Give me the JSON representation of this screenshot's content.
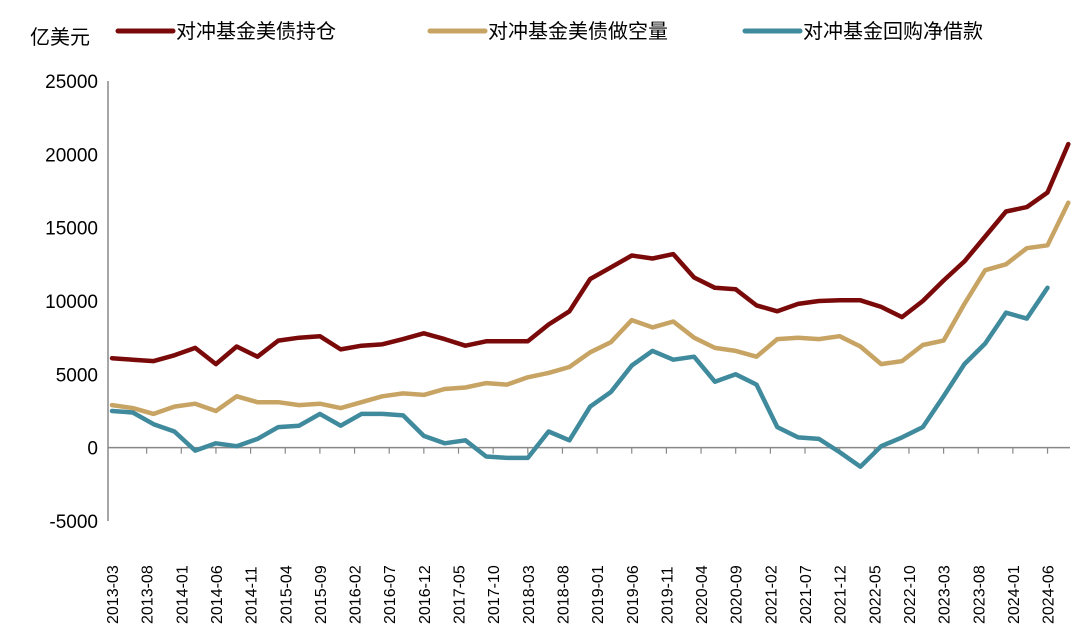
{
  "chart_data": {
    "type": "line",
    "title": "",
    "ylabel": "亿美元",
    "xlabel": "",
    "ylim": [
      -5000,
      25000
    ],
    "yticks": [
      "25000",
      "20000",
      "15000",
      "10000",
      "5000",
      "0",
      "-5000"
    ],
    "ytick_values": [
      25000,
      20000,
      15000,
      10000,
      5000,
      0,
      -5000
    ],
    "xtick_labels": [
      "2013-03",
      "2013-08",
      "2014-01",
      "2014-06",
      "2014-11",
      "2015-04",
      "2015-09",
      "2016-02",
      "2016-07",
      "2016-12",
      "2017-05",
      "2017-10",
      "2018-03",
      "2018-08",
      "2019-01",
      "2019-06",
      "2019-11",
      "2020-04",
      "2020-09",
      "2021-02",
      "2021-07",
      "2021-12",
      "2022-05",
      "2022-10",
      "2023-03",
      "2023-08",
      "2024-01",
      "2024-06"
    ],
    "x": [
      "2013-03",
      "2013-06",
      "2013-09",
      "2013-12",
      "2014-03",
      "2014-06",
      "2014-09",
      "2014-12",
      "2015-03",
      "2015-06",
      "2015-09",
      "2015-12",
      "2016-03",
      "2016-06",
      "2016-09",
      "2016-12",
      "2017-03",
      "2017-06",
      "2017-09",
      "2017-12",
      "2018-03",
      "2018-06",
      "2018-09",
      "2018-12",
      "2019-03",
      "2019-06",
      "2019-09",
      "2019-12",
      "2020-03",
      "2020-06",
      "2020-09",
      "2020-12",
      "2021-03",
      "2021-06",
      "2021-09",
      "2021-12",
      "2022-03",
      "2022-06",
      "2022-09",
      "2022-12",
      "2023-03",
      "2023-06",
      "2023-09",
      "2023-12",
      "2024-03",
      "2024-06",
      "2024-09"
    ],
    "legend_position": "top",
    "grid": false,
    "series": [
      {
        "name": "对冲基金美债持仓",
        "color": "#7a0a0a",
        "values": [
          6100,
          6000,
          5900,
          6300,
          6800,
          5700,
          6900,
          6200,
          7300,
          7500,
          7600,
          6700,
          6950,
          7050,
          7400,
          7800,
          7400,
          6950,
          7250,
          7250,
          7250,
          8400,
          9300,
          11500,
          12300,
          13100,
          12900,
          13200,
          11600,
          10900,
          10800,
          9700,
          9300,
          9800,
          10000,
          10050,
          10050,
          9600,
          8900,
          10000,
          11400,
          12700,
          14400,
          16100,
          16400,
          17400,
          20700
        ]
      },
      {
        "name": "对冲基金美债做空量",
        "color": "#c8a464",
        "values": [
          2900,
          2700,
          2300,
          2800,
          3000,
          2500,
          3500,
          3100,
          3100,
          2900,
          3000,
          2700,
          3100,
          3500,
          3700,
          3600,
          4000,
          4100,
          4400,
          4300,
          4800,
          5100,
          5500,
          6500,
          7200,
          8700,
          8200,
          8600,
          7500,
          6800,
          6600,
          6200,
          7400,
          7500,
          7400,
          7600,
          6900,
          5700,
          5900,
          7000,
          7300,
          9800,
          12100,
          12500,
          13600,
          13800,
          16700
        ]
      },
      {
        "name": "对冲基金回购净借款",
        "color": "#3f8a9c",
        "values": [
          2500,
          2400,
          1600,
          1100,
          -200,
          300,
          100,
          600,
          1400,
          1500,
          2300,
          1500,
          2300,
          2300,
          2200,
          800,
          300,
          500,
          -600,
          -700,
          -700,
          1100,
          500,
          2800,
          3800,
          5600,
          6600,
          6000,
          6200,
          4500,
          5000,
          4300,
          1400,
          700,
          600,
          -300,
          -1300,
          100,
          700,
          1400,
          3500,
          5700,
          7100,
          9200,
          8800,
          10900,
          null
        ]
      }
    ]
  }
}
